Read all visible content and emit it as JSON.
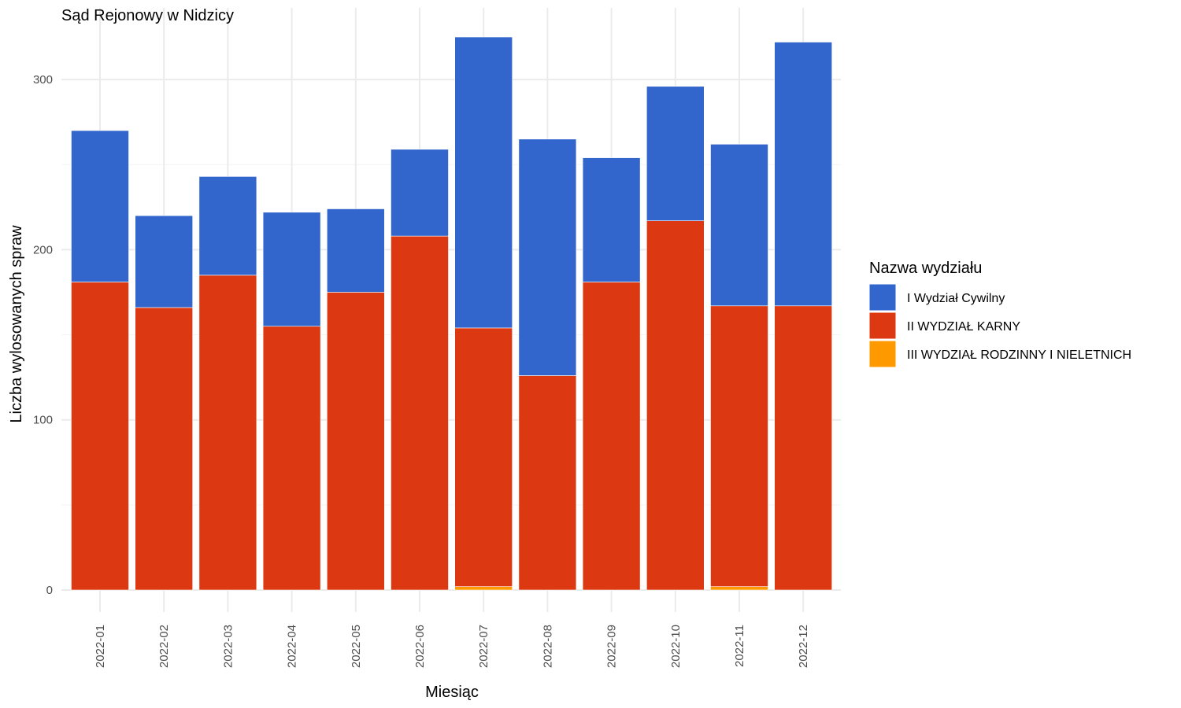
{
  "chart_data": {
    "type": "bar",
    "stacked": true,
    "title": "Sąd Rejonowy w Nidzicy",
    "xlabel": "Miesiąc",
    "ylabel": "Liczba wylosowanych spraw",
    "categories": [
      "2022-01",
      "2022-02",
      "2022-03",
      "2022-04",
      "2022-05",
      "2022-06",
      "2022-07",
      "2022-08",
      "2022-09",
      "2022-10",
      "2022-11",
      "2022-12"
    ],
    "yticks": [
      0,
      100,
      200,
      300
    ],
    "ylim": [
      0,
      335
    ],
    "grid": true,
    "legend_position": "right",
    "legend_title": "Nazwa wydziału",
    "series": [
      {
        "name": "III WYDZIAŁ RODZINNY I NIELETNICH",
        "color": "#FF9900",
        "values": [
          0,
          0,
          0,
          0,
          0,
          0,
          2,
          0,
          0,
          0,
          2,
          0
        ]
      },
      {
        "name": "II WYDZIAŁ KARNY",
        "color": "#DC3912",
        "values": [
          181,
          166,
          185,
          155,
          175,
          208,
          152,
          126,
          181,
          217,
          165,
          167
        ]
      },
      {
        "name": "I Wydział Cywilny",
        "color": "#3366CC",
        "values": [
          89,
          54,
          58,
          67,
          49,
          51,
          171,
          139,
          73,
          79,
          95,
          155
        ]
      }
    ],
    "legend_order": [
      "I Wydział Cywilny",
      "II WYDZIAŁ KARNY",
      "III WYDZIAŁ RODZINNY I NIELETNICH"
    ]
  }
}
